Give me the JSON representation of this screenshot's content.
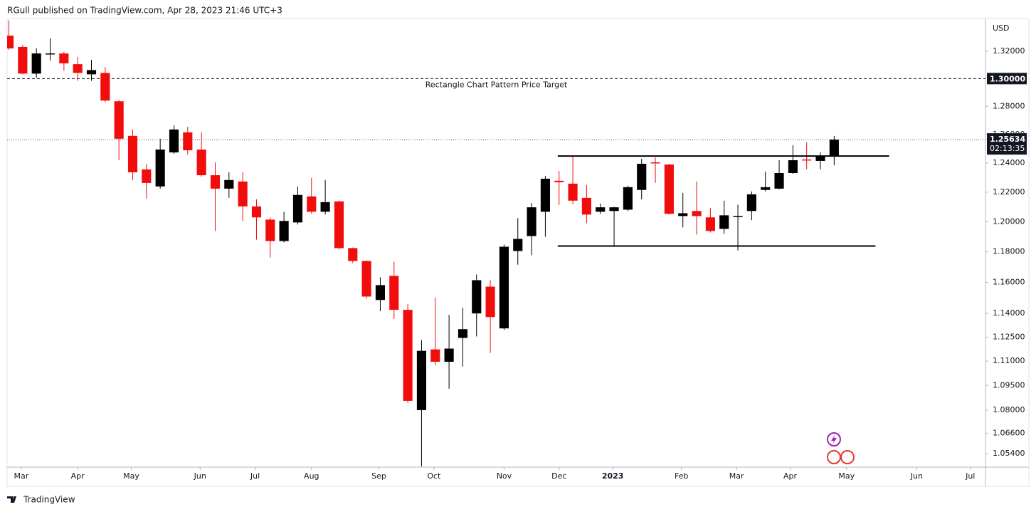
{
  "chart_data": {
    "type": "candlestick",
    "header": "RGull published on TradingView.com, Apr 28, 2023 21:46 UTC+3",
    "currency_label": "USD",
    "brand": "TradingView",
    "up_color": "#000000",
    "down_color": "#f20d0d",
    "log_scale": true,
    "grid": false,
    "xlim": [
      -0.13,
      71.0
    ],
    "ylim": [
      1.0461,
      1.3444
    ],
    "open": [
      1.3316,
      1.3232,
      1.3036,
      1.3179,
      1.3184,
      1.3105,
      1.3031,
      1.3041,
      1.2836,
      1.259,
      1.2356,
      1.2239,
      1.2474,
      1.2615,
      1.2494,
      1.2316,
      1.2224,
      1.2273,
      1.2103,
      1.2014,
      1.1871,
      1.1995,
      1.2171,
      1.2067,
      1.2137,
      1.1824,
      1.1739,
      1.1486,
      1.1642,
      1.1423,
      1.08,
      1.1173,
      1.1096,
      1.1245,
      1.14,
      1.1572,
      1.1305,
      1.1805,
      1.1904,
      1.2067,
      1.2278,
      1.2258,
      1.2161,
      1.2067,
      1.2072,
      1.2081,
      1.2215,
      1.2405,
      1.239,
      1.2038,
      1.2072,
      1.2029,
      1.1952,
      1.2033,
      1.2072,
      1.2215,
      1.2224,
      1.2331,
      1.2425,
      1.2415,
      1.2445
    ],
    "high": [
      1.3431,
      1.3247,
      1.3221,
      1.3295,
      1.3195,
      1.3158,
      1.3137,
      1.3084,
      1.2846,
      1.2635,
      1.2395,
      1.257,
      1.2665,
      1.2655,
      1.2615,
      1.2405,
      1.2336,
      1.2336,
      1.2151,
      1.2029,
      1.2067,
      1.2239,
      1.2297,
      1.2283,
      1.2142,
      1.1828,
      1.1744,
      1.1632,
      1.1734,
      1.1459,
      1.1231,
      1.1502,
      1.1391,
      1.1436,
      1.1651,
      1.1614,
      1.1847,
      1.2024,
      1.2127,
      1.2311,
      1.2346,
      1.2449,
      1.2249,
      1.2122,
      1.21,
      1.2244,
      1.243,
      1.244,
      1.2395,
      1.2195,
      1.2273,
      1.2091,
      1.2142,
      1.2115,
      1.2205,
      1.2341,
      1.242,
      1.2525,
      1.2545,
      1.2474,
      1.259
    ],
    "low": [
      1.3211,
      1.3031,
      1.3005,
      1.3132,
      1.3057,
      1.2984,
      1.2984,
      1.2831,
      1.242,
      1.2283,
      1.2156,
      1.2224,
      1.2464,
      1.2459,
      1.2306,
      1.1938,
      1.2161,
      1.2005,
      1.188,
      1.1762,
      1.1861,
      1.1981,
      1.2053,
      1.2048,
      1.1814,
      1.1725,
      1.1494,
      1.1414,
      1.1364,
      1.0843,
      1.0465,
      1.1074,
      1.093,
      1.1066,
      1.1254,
      1.1151,
      1.1295,
      1.1715,
      1.1777,
      1.1899,
      1.2112,
      1.2117,
      1.199,
      1.2053,
      1.1842,
      1.2072,
      1.2151,
      1.2263,
      1.2048,
      1.1962,
      1.1914,
      1.1928,
      1.1919,
      1.1809,
      1.201,
      1.2205,
      1.2219,
      1.2326,
      1.2356,
      1.2356,
      1.2385
    ],
    "close": [
      1.3221,
      1.3036,
      1.3184,
      1.3184,
      1.3111,
      1.3041,
      1.3062,
      1.2841,
      1.257,
      1.2336,
      1.2263,
      1.2494,
      1.2635,
      1.2489,
      1.2316,
      1.2224,
      1.2283,
      1.2103,
      1.2029,
      1.1871,
      1.2005,
      1.2181,
      1.2067,
      1.2132,
      1.1824,
      1.1739,
      1.1508,
      1.1582,
      1.1423,
      1.0856,
      1.1164,
      1.1096,
      1.1178,
      1.13,
      1.1614,
      1.1377,
      1.1833,
      1.1885,
      1.2097,
      1.2292,
      1.2268,
      1.2142,
      1.2048,
      1.2097,
      1.2097,
      1.2234,
      1.2395,
      1.24,
      1.2053,
      1.2057,
      1.2038,
      1.1938,
      1.2043,
      1.2038,
      1.2185,
      1.2234,
      1.2331,
      1.242,
      1.242,
      1.245,
      1.25634
    ],
    "yticks": [
      {
        "value": 1.32,
        "label": "1.32000"
      },
      {
        "value": 1.28,
        "label": "1.28000"
      },
      {
        "value": 1.26,
        "label": "1.26000"
      },
      {
        "value": 1.24,
        "label": "1.24000"
      },
      {
        "value": 1.22,
        "label": "1.22000"
      },
      {
        "value": 1.2,
        "label": "1.20000"
      },
      {
        "value": 1.18,
        "label": "1.18000"
      },
      {
        "value": 1.16,
        "label": "1.16000"
      },
      {
        "value": 1.14,
        "label": "1.14000"
      },
      {
        "value": 1.125,
        "label": "1.12500"
      },
      {
        "value": 1.11,
        "label": "1.11000"
      },
      {
        "value": 1.095,
        "label": "1.09500"
      },
      {
        "value": 1.08,
        "label": "1.08000"
      },
      {
        "value": 1.066,
        "label": "1.06600"
      },
      {
        "value": 1.054,
        "label": "1.05400"
      }
    ],
    "xticks": [
      {
        "value": 0.9,
        "label": "Mar"
      },
      {
        "value": 5.0,
        "label": "Apr"
      },
      {
        "value": 8.9,
        "label": "May"
      },
      {
        "value": 13.9,
        "label": "Jun"
      },
      {
        "value": 17.9,
        "label": "Jul"
      },
      {
        "value": 22.0,
        "label": "Aug"
      },
      {
        "value": 26.9,
        "label": "Sep"
      },
      {
        "value": 30.9,
        "label": "Oct"
      },
      {
        "value": 36.0,
        "label": "Nov"
      },
      {
        "value": 40.0,
        "label": "Dec"
      },
      {
        "value": 43.9,
        "label": "2023",
        "bold": true
      },
      {
        "value": 48.9,
        "label": "Feb"
      },
      {
        "value": 52.9,
        "label": "Mar"
      },
      {
        "value": 56.8,
        "label": "Apr"
      },
      {
        "value": 60.9,
        "label": "May"
      },
      {
        "value": 66.0,
        "label": "Jun"
      },
      {
        "value": 69.9,
        "label": "Jul"
      }
    ],
    "price_target": {
      "value": 1.3,
      "label": "1.30000",
      "text": "Rectangle Chart Pattern Price Target"
    },
    "rectangle": {
      "top": 1.2449,
      "bottom": 1.1838,
      "start": 39.9,
      "top_end": 64.0,
      "bottom_end": 63.0
    },
    "last_price": {
      "value": 1.25634,
      "label": "1.25634",
      "countdown": "02:13:35"
    }
  }
}
